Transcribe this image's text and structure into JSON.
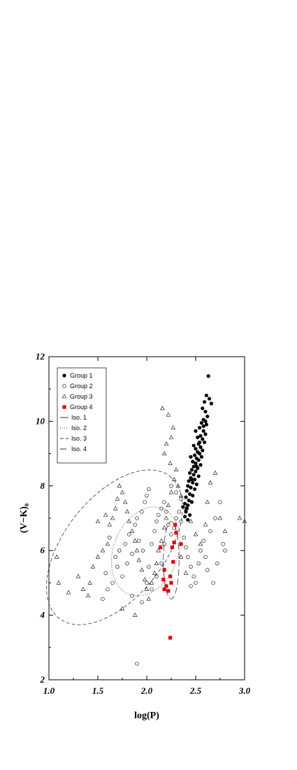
{
  "chart_data": {
    "type": "scatter",
    "xlabel": "log(P)",
    "ylabel": "(V−K)₀",
    "xlim": [
      1.0,
      3.0
    ],
    "ylim": [
      2,
      12
    ],
    "xticks": [
      "1.0",
      "1.5",
      "2.0",
      "2.5",
      "3.0"
    ],
    "yticks": [
      "2",
      "4",
      "6",
      "8",
      "10",
      "12"
    ],
    "legend_position": "top-left",
    "grid": false,
    "series": [
      {
        "name": "Group 1",
        "marker": "filled-circle",
        "color": "#000000",
        "points": [
          [
            2.63,
            11.4
          ],
          [
            2.61,
            10.8
          ],
          [
            2.59,
            10.6
          ],
          [
            2.64,
            10.7
          ],
          [
            2.66,
            10.55
          ],
          [
            2.57,
            10.4
          ],
          [
            2.6,
            10.3
          ],
          [
            2.62,
            10.15
          ],
          [
            2.58,
            10.05
          ],
          [
            2.56,
            9.95
          ],
          [
            2.61,
            9.9
          ],
          [
            2.54,
            9.8
          ],
          [
            2.58,
            9.7
          ],
          [
            2.6,
            9.6
          ],
          [
            2.55,
            9.55
          ],
          [
            2.52,
            9.5
          ],
          [
            2.57,
            9.45
          ],
          [
            2.59,
            9.35
          ],
          [
            2.53,
            9.3
          ],
          [
            2.55,
            9.2
          ],
          [
            2.5,
            9.15
          ],
          [
            2.57,
            9.1
          ],
          [
            2.52,
            9.05
          ],
          [
            2.54,
            9.0
          ],
          [
            2.49,
            8.95
          ],
          [
            2.56,
            8.9
          ],
          [
            2.51,
            8.85
          ],
          [
            2.53,
            8.8
          ],
          [
            2.47,
            8.75
          ],
          [
            2.5,
            8.7
          ],
          [
            2.55,
            8.65
          ],
          [
            2.48,
            8.6
          ],
          [
            2.52,
            8.55
          ],
          [
            2.46,
            8.5
          ],
          [
            2.5,
            8.45
          ],
          [
            2.44,
            8.4
          ],
          [
            2.48,
            8.35
          ],
          [
            2.53,
            8.3
          ],
          [
            2.45,
            8.25
          ],
          [
            2.49,
            8.2
          ],
          [
            2.43,
            8.15
          ],
          [
            2.47,
            8.1
          ],
          [
            2.51,
            8.05
          ],
          [
            2.42,
            8.0
          ],
          [
            2.45,
            7.95
          ],
          [
            2.49,
            7.9
          ],
          [
            2.41,
            7.85
          ],
          [
            2.44,
            7.75
          ],
          [
            2.47,
            7.7
          ],
          [
            2.4,
            7.65
          ],
          [
            2.43,
            7.55
          ],
          [
            2.46,
            7.5
          ],
          [
            2.39,
            7.45
          ],
          [
            2.42,
            7.4
          ],
          [
            2.41,
            7.3
          ],
          [
            2.4,
            7.2
          ],
          [
            2.44,
            7.1
          ],
          [
            2.39,
            7.05
          ],
          [
            2.42,
            6.95
          ],
          [
            2.5,
            9.7
          ],
          [
            2.48,
            9.25
          ],
          [
            2.45,
            8.9
          ],
          [
            2.58,
            9.85
          ],
          [
            2.6,
            10.0
          ],
          [
            2.51,
            8.6
          ],
          [
            2.37,
            7.35
          ],
          [
            2.46,
            8.2
          ],
          [
            2.54,
            9.35
          ]
        ]
      },
      {
        "name": "Group 2",
        "marker": "open-circle",
        "color": "#000000",
        "points": [
          [
            1.9,
            2.5
          ],
          [
            1.55,
            4.5
          ],
          [
            1.6,
            4.8
          ],
          [
            1.65,
            5.0
          ],
          [
            1.58,
            5.3
          ],
          [
            1.7,
            5.5
          ],
          [
            1.75,
            5.2
          ],
          [
            1.8,
            5.6
          ],
          [
            1.85,
            5.9
          ],
          [
            1.72,
            6.0
          ],
          [
            1.78,
            6.2
          ],
          [
            1.82,
            6.5
          ],
          [
            1.88,
            6.8
          ],
          [
            1.9,
            7.0
          ],
          [
            1.95,
            7.2
          ],
          [
            1.98,
            7.5
          ],
          [
            2.0,
            7.7
          ],
          [
            2.02,
            7.9
          ],
          [
            1.92,
            6.3
          ],
          [
            1.96,
            6.0
          ],
          [
            2.05,
            6.2
          ],
          [
            2.08,
            6.6
          ],
          [
            2.1,
            6.9
          ],
          [
            2.12,
            7.1
          ],
          [
            2.15,
            7.3
          ],
          [
            2.18,
            7.5
          ],
          [
            2.2,
            7.2
          ],
          [
            2.22,
            6.8
          ],
          [
            2.25,
            6.5
          ],
          [
            2.28,
            6.7
          ],
          [
            2.3,
            7.0
          ],
          [
            2.33,
            7.2
          ],
          [
            2.35,
            6.9
          ],
          [
            2.38,
            6.4
          ],
          [
            2.4,
            6.1
          ],
          [
            2.42,
            5.8
          ],
          [
            2.45,
            5.5
          ],
          [
            2.48,
            5.2
          ],
          [
            2.5,
            5.0
          ],
          [
            2.53,
            5.6
          ],
          [
            2.55,
            6.0
          ],
          [
            2.58,
            6.3
          ],
          [
            2.6,
            5.8
          ],
          [
            2.62,
            5.4
          ],
          [
            2.65,
            6.6
          ],
          [
            2.7,
            7.0
          ],
          [
            2.75,
            7.5
          ],
          [
            2.78,
            6.2
          ],
          [
            2.8,
            6.0
          ],
          [
            2.0,
            5.0
          ],
          [
            2.05,
            4.8
          ],
          [
            2.1,
            5.2
          ],
          [
            1.85,
            4.6
          ],
          [
            1.95,
            4.4
          ],
          [
            2.15,
            5.6
          ],
          [
            2.02,
            5.5
          ],
          [
            1.68,
            5.8
          ],
          [
            2.3,
            7.8
          ],
          [
            2.25,
            8.0
          ],
          [
            2.35,
            7.6
          ],
          [
            2.18,
            6.2
          ],
          [
            1.62,
            6.4
          ],
          [
            2.68,
            5.0
          ],
          [
            2.72,
            5.6
          ],
          [
            2.45,
            4.9
          ]
        ]
      },
      {
        "name": "Group 3",
        "marker": "open-triangle",
        "color": "#000000",
        "points": [
          [
            1.08,
            5.8
          ],
          [
            1.1,
            5.0
          ],
          [
            1.2,
            4.7
          ],
          [
            1.3,
            5.2
          ],
          [
            1.35,
            4.8
          ],
          [
            1.4,
            4.6
          ],
          [
            1.42,
            5.0
          ],
          [
            1.45,
            5.5
          ],
          [
            1.5,
            5.8
          ],
          [
            1.55,
            6.0
          ],
          [
            1.6,
            6.2
          ],
          [
            1.62,
            6.8
          ],
          [
            1.65,
            7.0
          ],
          [
            1.68,
            7.3
          ],
          [
            1.7,
            7.6
          ],
          [
            1.72,
            8.0
          ],
          [
            1.75,
            7.8
          ],
          [
            1.78,
            7.5
          ],
          [
            1.8,
            7.2
          ],
          [
            1.82,
            6.9
          ],
          [
            1.85,
            6.6
          ],
          [
            1.88,
            6.3
          ],
          [
            1.9,
            6.0
          ],
          [
            1.92,
            5.7
          ],
          [
            1.95,
            5.4
          ],
          [
            1.98,
            5.1
          ],
          [
            2.0,
            4.8
          ],
          [
            2.02,
            4.5
          ],
          [
            2.05,
            5.0
          ],
          [
            2.08,
            5.3
          ],
          [
            2.1,
            5.6
          ],
          [
            2.12,
            6.0
          ],
          [
            2.15,
            6.3
          ],
          [
            2.18,
            6.7
          ],
          [
            2.2,
            7.0
          ],
          [
            2.22,
            7.4
          ],
          [
            2.25,
            7.8
          ],
          [
            2.28,
            8.2
          ],
          [
            2.3,
            8.5
          ],
          [
            2.32,
            8.0
          ],
          [
            2.35,
            7.7
          ],
          [
            2.4,
            7.3
          ],
          [
            2.45,
            6.9
          ],
          [
            2.5,
            6.5
          ],
          [
            2.55,
            6.2
          ],
          [
            2.6,
            6.8
          ],
          [
            2.62,
            7.5
          ],
          [
            2.65,
            8.1
          ],
          [
            2.7,
            8.4
          ],
          [
            2.75,
            7.0
          ],
          [
            2.8,
            6.6
          ],
          [
            2.95,
            7.0
          ],
          [
            3.0,
            6.9
          ],
          [
            2.16,
            10.4
          ],
          [
            2.22,
            10.2
          ],
          [
            2.27,
            9.8
          ],
          [
            2.25,
            9.5
          ],
          [
            2.2,
            9.3
          ],
          [
            2.18,
            9.0
          ],
          [
            2.24,
            8.7
          ],
          [
            1.88,
            4.0
          ],
          [
            1.75,
            4.2
          ],
          [
            2.35,
            5.8
          ],
          [
            2.4,
            5.3
          ],
          [
            1.5,
            6.9
          ],
          [
            1.58,
            7.1
          ]
        ]
      },
      {
        "name": "Group 4",
        "marker": "filled-square",
        "color": "#e00000",
        "points": [
          [
            2.24,
            3.3
          ],
          [
            2.18,
            4.8
          ],
          [
            2.17,
            5.1
          ],
          [
            2.18,
            5.4
          ],
          [
            2.2,
            4.9
          ],
          [
            2.22,
            4.75
          ],
          [
            2.24,
            5.2
          ],
          [
            2.25,
            5.0
          ],
          [
            2.27,
            5.65
          ],
          [
            2.26,
            6.1
          ],
          [
            2.28,
            6.25
          ],
          [
            2.3,
            6.55
          ],
          [
            2.29,
            6.8
          ],
          [
            2.14,
            6.1
          ],
          [
            2.35,
            6.2
          ]
        ]
      }
    ],
    "isochrones": [
      {
        "name": "Iso. 1",
        "style": "solid",
        "points": []
      },
      {
        "name": "Iso. 2",
        "style": "dotted",
        "ellipse": {
          "cx": 1.99,
          "cy": 5.97,
          "rx": 0.47,
          "ry": 1.0,
          "rotation_deg": 69
        }
      },
      {
        "name": "Iso. 3",
        "style": "dashed",
        "ellipse": {
          "cx": 1.67,
          "cy": 6.1,
          "rx": 0.92,
          "ry": 1.55,
          "rotation_deg": 52
        }
      },
      {
        "name": "Iso. 4",
        "style": "long-dash",
        "ellipse": {
          "cx": 2.25,
          "cy": 5.7,
          "rx": 0.08,
          "ry": 1.2,
          "rotation_deg": 0
        }
      }
    ]
  }
}
